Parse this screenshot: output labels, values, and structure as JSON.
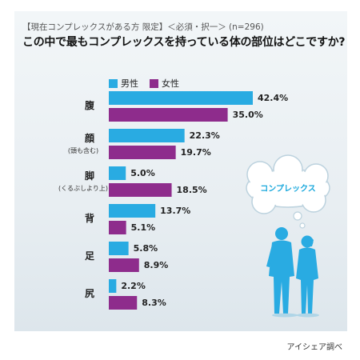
{
  "header": {
    "subtitle": "【現在コンプレックスがある方 限定】＜必須・択一＞ (n=296)",
    "title": "この中で最もコンプレックスを持っている体の部位はどこですか?"
  },
  "legend": [
    {
      "name": "男性",
      "color": "#29abe2"
    },
    {
      "name": "女性",
      "color": "#8e2c8c"
    }
  ],
  "bubble": {
    "text": "コンプレックス"
  },
  "source": "アイシェア調べ",
  "chart_data": {
    "type": "bar",
    "orientation": "horizontal",
    "title": "この中で最もコンプレックスを持っている体の部位はどこですか?",
    "categories": [
      "腹",
      "顔",
      "脚",
      "背",
      "足",
      "尻"
    ],
    "category_notes": [
      "",
      "(頭も含む)",
      "(くるぶしより上)",
      "",
      "",
      ""
    ],
    "series": [
      {
        "name": "男性",
        "color": "#29abe2",
        "values": [
          42.4,
          22.3,
          5.0,
          13.7,
          5.8,
          2.2
        ]
      },
      {
        "name": "女性",
        "color": "#8e2c8c",
        "values": [
          35.0,
          19.7,
          18.5,
          5.1,
          8.9,
          8.3
        ]
      }
    ],
    "value_labels": [
      [
        "42.4%",
        "35.0%"
      ],
      [
        "22.3%",
        "19.7%"
      ],
      [
        "5.0%",
        "18.5%"
      ],
      [
        "13.7%",
        "5.1%"
      ],
      [
        "5.8%",
        "8.9%"
      ],
      [
        "2.2%",
        "8.3%"
      ]
    ],
    "unit": "%",
    "xlim": [
      0,
      42.4
    ],
    "legend_position": "top-left"
  }
}
